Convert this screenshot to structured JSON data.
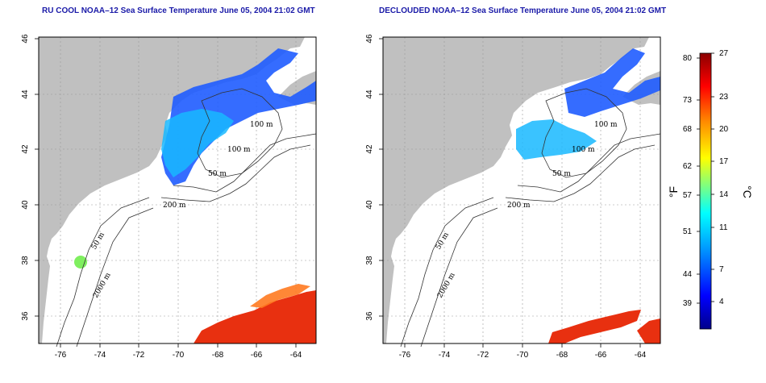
{
  "panels": [
    {
      "title": "RU COOL NOAA–12 Sea Surface Temperature June 05, 2004 21:02 GMT"
    },
    {
      "title": "DECLOUDED NOAA–12 Sea Surface Temperature June 05, 2004 21:02 GMT"
    }
  ],
  "map": {
    "lon_ticks": [
      "-76",
      "-74",
      "-72",
      "-70",
      "-68",
      "-66",
      "-64"
    ],
    "lat_ticks": [
      "46",
      "44",
      "42",
      "40",
      "38",
      "36"
    ],
    "contour_labels": [
      "100 m",
      "100 m",
      "50 m",
      "200 m",
      "50 m",
      "2000 m"
    ],
    "land_color": "#c0c0c0",
    "ocean_color": "#ffffff"
  },
  "colorbar": {
    "f_ticks": [
      "80",
      "73",
      "68",
      "62",
      "57",
      "51",
      "44",
      "39"
    ],
    "c_ticks": [
      "27",
      "23",
      "20",
      "17",
      "14",
      "11",
      "7",
      "4"
    ],
    "f_label": "°F",
    "c_label": "°C",
    "range_c": [
      1,
      27
    ],
    "colors": [
      "#00008b",
      "#0000ff",
      "#00bfff",
      "#00ffff",
      "#7fff7f",
      "#ffff00",
      "#ff8c00",
      "#ff0000",
      "#8b0000"
    ]
  }
}
